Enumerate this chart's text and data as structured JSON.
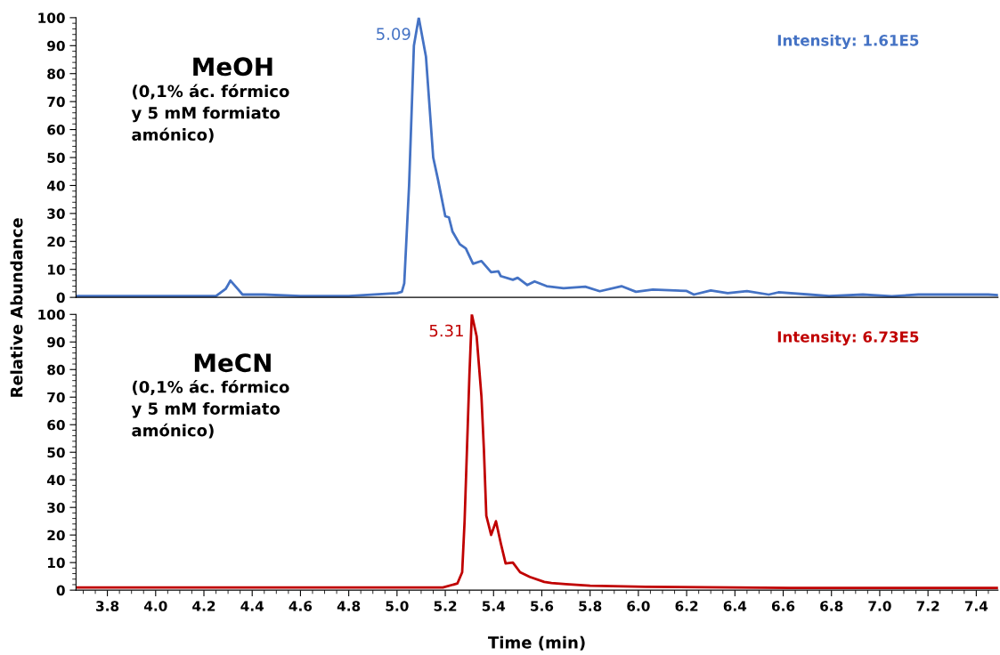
{
  "chart_data": [
    {
      "type": "line",
      "ylabel": "Relative Abundance",
      "xlim": [
        3.67,
        7.49
      ],
      "ylim": [
        0,
        100
      ],
      "yticks": [
        0,
        10,
        20,
        30,
        40,
        50,
        60,
        70,
        80,
        90,
        100
      ],
      "tick_labels": "y",
      "grid": false,
      "marker": "none",
      "line_style": "solid",
      "annotations": [
        "MeOH",
        "(0,1% ác. fórmico\ny 5 mM formiato\namónico)",
        {
          "text": "5.09",
          "x": 5.09,
          "y": 100
        },
        "Intensity: 1.61E5"
      ],
      "series": [
        {
          "color": "#4472c4",
          "x": [
            3.67,
            4.0,
            4.25,
            4.29,
            4.31,
            4.34,
            4.36,
            4.45,
            4.6,
            4.8,
            5.0,
            5.02,
            5.03,
            5.05,
            5.07,
            5.09,
            5.12,
            5.15,
            5.17,
            5.2,
            5.215,
            5.23,
            5.26,
            5.285,
            5.315,
            5.35,
            5.39,
            5.42,
            5.43,
            5.48,
            5.5,
            5.54,
            5.57,
            5.62,
            5.69,
            5.78,
            5.84,
            5.93,
            5.99,
            6.06,
            6.2,
            6.23,
            6.3,
            6.37,
            6.45,
            6.54,
            6.58,
            6.71,
            6.79,
            6.93,
            7.05,
            7.16,
            7.45,
            7.49
          ],
          "values": [
            0.5,
            0.5,
            0.5,
            3,
            6,
            3,
            1,
            1,
            0.5,
            0.5,
            1.5,
            2,
            5,
            40,
            90,
            100,
            86,
            50,
            42,
            29,
            28.6,
            23.5,
            19,
            17.5,
            12,
            13,
            9,
            9.3,
            7.6,
            6.3,
            7,
            4.4,
            5.7,
            4,
            3.3,
            3.8,
            2.2,
            4,
            2,
            2.8,
            2.3,
            1,
            2.5,
            1.5,
            2.2,
            1,
            1.8,
            1,
            0.5,
            1,
            0.4,
            1,
            1,
            0.8
          ]
        }
      ]
    },
    {
      "type": "line",
      "xlabel": "Time (min)",
      "xlim": [
        3.67,
        7.49
      ],
      "ylim": [
        0,
        100
      ],
      "yticks": [
        0,
        10,
        20,
        30,
        40,
        50,
        60,
        70,
        80,
        90,
        100
      ],
      "xticks": [
        3.8,
        {
          "value": 4,
          "label": "4.0"
        },
        4.2,
        4.4,
        4.6,
        4.8,
        {
          "value": 5,
          "label": "5.0"
        },
        5.2,
        5.4,
        5.6,
        5.8,
        {
          "value": 6,
          "label": "6.0"
        },
        6.2,
        6.4,
        6.6,
        6.8,
        {
          "value": 7,
          "label": "7.0"
        },
        7.2,
        7.4
      ],
      "grid": false,
      "marker": "none",
      "line_style": "solid",
      "annotations": [
        "MeCN",
        "(0,1% ác. fórmico\ny 5 mM formiato\namónico)",
        {
          "text": "5.31",
          "x": 5.31,
          "y": 100
        },
        "Intensity: 6.73E5"
      ],
      "series": [
        {
          "color": "#c00000",
          "x": [
            3.67,
            4.5,
            5.1,
            5.19,
            5.25,
            5.27,
            5.28,
            5.3,
            5.31,
            5.33,
            5.35,
            5.36,
            5.37,
            5.39,
            5.41,
            5.43,
            5.45,
            5.48,
            5.51,
            5.55,
            5.61,
            5.64,
            5.7,
            5.8,
            6.03,
            6.63,
            7.49
          ],
          "values": [
            1,
            1,
            1,
            1,
            2.4,
            6.5,
            25,
            78,
            100,
            92,
            70,
            51,
            27,
            20,
            25,
            17,
            9.7,
            10,
            6.5,
            4.8,
            3,
            2.6,
            2.2,
            1.6,
            1.2,
            0.8,
            0.8
          ]
        }
      ]
    }
  ]
}
